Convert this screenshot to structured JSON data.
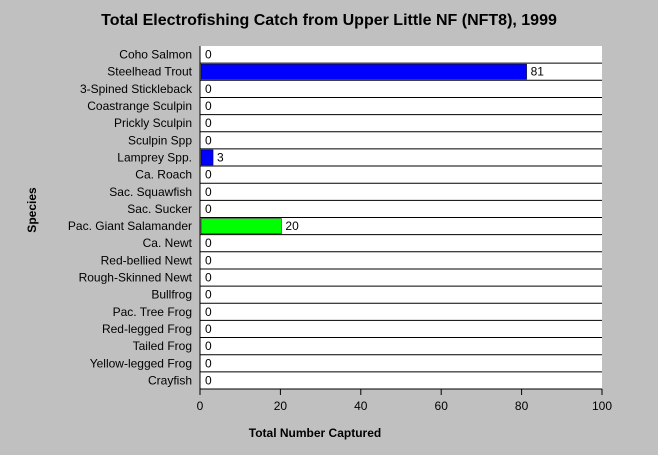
{
  "chart_data": {
    "type": "bar",
    "orientation": "horizontal",
    "title": "Total Electrofishing Catch from Upper Little NF (NFT8), 1999",
    "xlabel": "Total Number Captured",
    "ylabel": "Species",
    "xlim": [
      0,
      100
    ],
    "x_ticks": [
      "0",
      "20",
      "40",
      "60",
      "80",
      "100"
    ],
    "grid": "horizontal lines between categories",
    "legend": "none",
    "categories": [
      "Coho Salmon",
      "Steelhead Trout",
      "3-Spined Stickleback",
      "Coastrange Sculpin",
      "Prickly Sculpin",
      "Sculpin Spp",
      "Lamprey Spp.",
      "Ca. Roach",
      "Sac. Squawfish",
      "Sac. Sucker",
      "Pac. Giant Salamander",
      "Ca. Newt",
      "Red-bellied Newt",
      "Rough-Skinned Newt",
      "Bullfrog",
      "Pac. Tree Frog",
      "Red-legged Frog",
      "Tailed Frog",
      "Yellow-legged Frog",
      "Crayfish"
    ],
    "values": [
      0,
      81,
      0,
      0,
      0,
      0,
      3,
      0,
      0,
      0,
      20,
      0,
      0,
      0,
      0,
      0,
      0,
      0,
      0,
      0
    ],
    "data_labels": [
      "0",
      "81",
      "0",
      "0",
      "0",
      "0",
      "3",
      "0",
      "0",
      "0",
      "20",
      "0",
      "0",
      "0",
      "0",
      "0",
      "0",
      "0",
      "0",
      "0"
    ],
    "bar_colors": [
      "#0000ff",
      "#0000ff",
      "#0000ff",
      "#0000ff",
      "#0000ff",
      "#0000ff",
      "#0000ff",
      "#0000ff",
      "#0000ff",
      "#0000ff",
      "#00ff00",
      "#00ff00",
      "#00ff00",
      "#00ff00",
      "#00ff00",
      "#00ff00",
      "#00ff00",
      "#00ff00",
      "#00ff00",
      "#0000ff"
    ],
    "colors": {
      "background": "#c0c0c0",
      "plot_background": "#ffffff"
    }
  }
}
